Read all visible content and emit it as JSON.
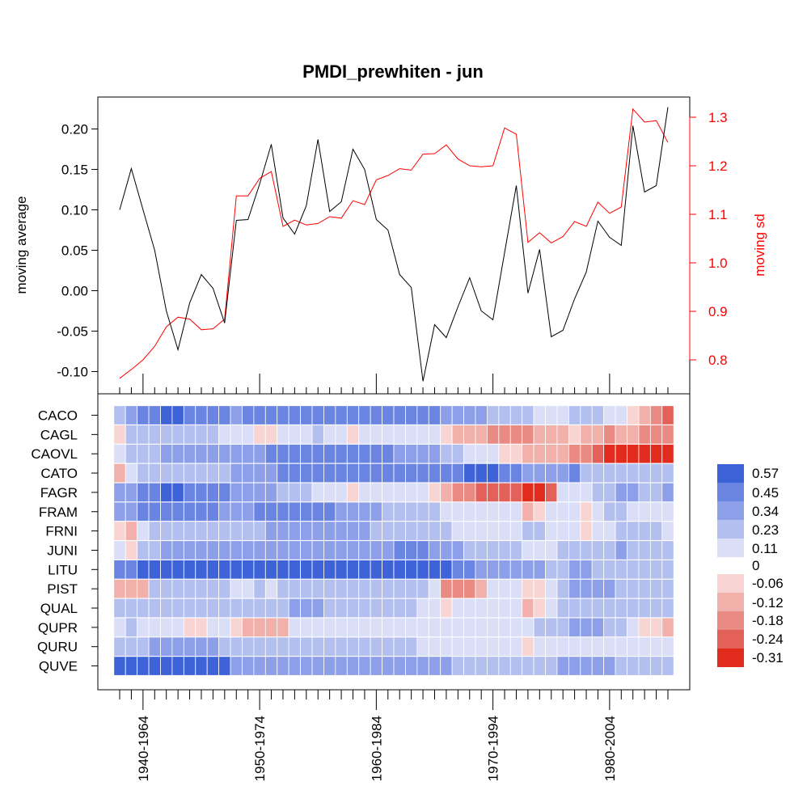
{
  "chart_data": {
    "type": "line+heatmap",
    "title": "PMDI_prewhiten - jun",
    "top_panel": {
      "ylabel_left": "moving average",
      "ylabel_right": "moving sd",
      "left_ticks": [
        "0.20",
        "0.15",
        "0.10",
        "0.05",
        "0.00",
        "-0.05",
        "-0.10"
      ],
      "left_tick_values": [
        0.2,
        0.15,
        0.1,
        0.05,
        0.0,
        -0.05,
        -0.1
      ],
      "ylim_left": [
        -0.1,
        0.2
      ],
      "right_ticks": [
        "1.3",
        "1.2",
        "1.1",
        "1.0",
        "0.9",
        "0.8"
      ],
      "right_tick_values": [
        1.3,
        1.2,
        1.1,
        1.0,
        0.9,
        0.8
      ],
      "ylim_right": [
        0.8,
        1.3
      ],
      "series": [
        {
          "name": "moving average",
          "color": "#000000",
          "values": [
            0.1,
            0.151,
            0.1,
            0.05,
            -0.025,
            -0.073,
            -0.015,
            0.02,
            0.003,
            -0.04,
            0.087,
            0.088,
            0.132,
            0.181,
            0.09,
            0.07,
            0.105,
            0.187,
            0.098,
            0.11,
            0.175,
            0.15,
            0.088,
            0.075,
            0.02,
            0.004,
            -0.112,
            -0.042,
            -0.058,
            -0.02,
            0.016,
            -0.025,
            -0.036,
            0.047,
            0.13,
            -0.003,
            0.051,
            -0.057,
            -0.049,
            -0.01,
            0.023,
            0.086,
            0.066,
            0.056,
            0.204,
            0.122,
            0.13,
            0.227
          ]
        },
        {
          "name": "moving sd",
          "color": "#ff0000",
          "values": [
            0.762,
            0.78,
            0.8,
            0.828,
            0.868,
            0.888,
            0.884,
            0.862,
            0.864,
            0.884,
            1.138,
            1.138,
            1.174,
            1.188,
            1.075,
            1.088,
            1.078,
            1.081,
            1.095,
            1.092,
            1.128,
            1.12,
            1.171,
            1.18,
            1.194,
            1.191,
            1.224,
            1.225,
            1.243,
            1.214,
            1.2,
            1.198,
            1.2,
            1.278,
            1.265,
            1.042,
            1.062,
            1.041,
            1.054,
            1.085,
            1.075,
            1.125,
            1.102,
            1.115,
            1.317,
            1.29,
            1.293,
            1.248
          ]
        }
      ]
    },
    "bottom_panel": {
      "rows": [
        "CACO",
        "CAGL",
        "CAOVL",
        "CATO",
        "FAGR",
        "FRAM",
        "FRNI",
        "JUNI",
        "LITU",
        "PIST",
        "QUAL",
        "QUPR",
        "QURU",
        "QUVE"
      ],
      "x_tick_labels": [
        "1940-1964",
        "1950-1974",
        "1960-1984",
        "1970-1994",
        "1980-2004"
      ],
      "n_windows": 48,
      "row_values": [
        [
          0.2,
          0.25,
          0.35,
          0.35,
          0.45,
          0.45,
          0.4,
          0.4,
          0.35,
          0.35,
          0.3,
          0.35,
          0.38,
          0.4,
          0.4,
          0.4,
          0.4,
          0.4,
          0.42,
          0.42,
          0.42,
          0.4,
          0.4,
          0.4,
          0.4,
          0.4,
          0.38,
          0.35,
          0.33,
          0.3,
          0.28,
          0.25,
          0.22,
          0.2,
          0.18,
          0.12,
          0.1,
          0.1,
          0.1,
          0.12,
          0.15,
          0.12,
          0.1,
          0.05,
          -0.05,
          -0.1,
          -0.12,
          -0.18
        ],
        [
          -0.05,
          0.15,
          0.12,
          0.14,
          0.2,
          0.16,
          0.14,
          0.12,
          0.12,
          0.1,
          0.05,
          0.05,
          -0.05,
          -0.05,
          0.1,
          0.05,
          0.1,
          0.12,
          0.08,
          0.05,
          -0.02,
          0.04,
          0.05,
          0.08,
          0.1,
          0.08,
          0.05,
          0.05,
          -0.05,
          -0.08,
          -0.1,
          -0.1,
          -0.12,
          -0.12,
          -0.14,
          -0.12,
          -0.1,
          -0.08,
          -0.06,
          -0.05,
          -0.08,
          -0.1,
          -0.12,
          -0.1,
          -0.1,
          -0.12,
          -0.12,
          -0.12
        ],
        [
          0.05,
          0.15,
          0.2,
          0.2,
          0.25,
          0.25,
          0.25,
          0.25,
          0.28,
          0.3,
          0.3,
          0.3,
          0.32,
          0.34,
          0.35,
          0.35,
          0.38,
          0.38,
          0.4,
          0.4,
          0.4,
          0.4,
          0.38,
          0.35,
          0.33,
          0.3,
          0.28,
          0.25,
          0.2,
          0.15,
          0.1,
          0.08,
          0.02,
          -0.02,
          -0.05,
          -0.06,
          -0.08,
          -0.1,
          -0.1,
          -0.12,
          -0.14,
          -0.18,
          -0.24,
          -0.25,
          -0.26,
          -0.24,
          -0.24,
          -0.31
        ],
        [
          -0.08,
          0.05,
          0.12,
          0.15,
          0.18,
          0.18,
          0.2,
          0.2,
          0.22,
          0.22,
          0.28,
          0.28,
          0.3,
          0.32,
          0.35,
          0.38,
          0.38,
          0.4,
          0.4,
          0.42,
          0.42,
          0.42,
          0.42,
          0.42,
          0.42,
          0.42,
          0.4,
          0.4,
          0.42,
          0.44,
          0.45,
          0.45,
          0.45,
          0.44,
          0.38,
          0.3,
          0.28,
          0.28,
          0.3,
          0.34,
          0.2,
          0.18,
          0.18,
          0.18,
          0.17,
          0.16,
          0.16,
          0.2
        ],
        [
          0.25,
          0.3,
          0.38,
          0.42,
          0.48,
          0.48,
          0.4,
          0.38,
          0.35,
          0.35,
          0.28,
          0.26,
          0.25,
          0.24,
          0.22,
          0.18,
          0.12,
          0.1,
          0.08,
          0.05,
          -0.02,
          0.03,
          0.05,
          0.05,
          0.05,
          0.05,
          0.03,
          -0.05,
          -0.1,
          -0.16,
          -0.17,
          -0.18,
          -0.18,
          -0.2,
          -0.22,
          -0.3,
          -0.31,
          -0.18,
          0.05,
          0.08,
          0.1,
          0.15,
          0.18,
          0.3,
          0.25,
          0.22,
          0.2,
          0.24
        ],
        [
          0.25,
          0.32,
          0.38,
          0.38,
          0.4,
          0.4,
          0.36,
          0.36,
          0.34,
          0.33,
          0.32,
          0.33,
          0.34,
          0.35,
          0.35,
          0.36,
          0.38,
          0.38,
          0.36,
          0.33,
          0.32,
          0.3,
          0.24,
          0.2,
          0.2,
          0.18,
          0.16,
          0.12,
          0.1,
          0.1,
          0.08,
          0.08,
          0.1,
          0.1,
          0.1,
          -0.08,
          -0.05,
          0.05,
          0.05,
          0.05,
          -0.03,
          0.1,
          0.12,
          0.15,
          0.05,
          0.03,
          0.02,
          0.06
        ],
        [
          -0.05,
          -0.07,
          0.01,
          0.12,
          0.14,
          0.14,
          0.15,
          0.15,
          0.18,
          0.18,
          0.2,
          0.2,
          0.22,
          0.28,
          0.28,
          0.3,
          0.3,
          0.32,
          0.32,
          0.3,
          0.28,
          0.26,
          0.22,
          0.2,
          0.18,
          0.15,
          0.12,
          0.12,
          0.12,
          0.1,
          0.1,
          0.1,
          0.08,
          0.08,
          0.05,
          0.15,
          0.12,
          0.1,
          0.1,
          0.05,
          -0.03,
          0.05,
          0.1,
          0.12,
          0.15,
          0.15,
          0.15,
          0.1
        ],
        [
          0.1,
          -0.05,
          0.15,
          0.15,
          0.28,
          0.28,
          0.28,
          0.26,
          0.26,
          0.26,
          0.3,
          0.32,
          0.33,
          0.33,
          0.33,
          0.32,
          0.32,
          0.3,
          0.3,
          0.3,
          0.3,
          0.3,
          0.3,
          0.32,
          0.34,
          0.36,
          0.36,
          0.3,
          0.28,
          0.25,
          0.22,
          0.2,
          0.2,
          0.18,
          0.15,
          0.08,
          0.02,
          0.02,
          0.15,
          0.18,
          0.18,
          0.22,
          0.22,
          0.25,
          0.22,
          0.2,
          0.18,
          0.22
        ],
        [
          0.35,
          0.42,
          0.45,
          0.48,
          0.5,
          0.5,
          0.5,
          0.5,
          0.52,
          0.52,
          0.52,
          0.54,
          0.55,
          0.56,
          0.56,
          0.57,
          0.57,
          0.57,
          0.55,
          0.55,
          0.54,
          0.52,
          0.52,
          0.52,
          0.52,
          0.5,
          0.5,
          0.52,
          0.45,
          0.4,
          0.35,
          0.33,
          0.32,
          0.3,
          0.28,
          0.25,
          0.24,
          0.22,
          0.22,
          0.25,
          0.25,
          0.22,
          0.2,
          0.2,
          0.18,
          0.18,
          0.18,
          0.2
        ],
        [
          -0.1,
          -0.1,
          -0.1,
          0.12,
          0.14,
          0.15,
          0.15,
          0.15,
          0.12,
          0.12,
          0.1,
          0.1,
          0.12,
          0.02,
          0.18,
          0.2,
          0.22,
          0.22,
          0.2,
          0.2,
          0.18,
          0.16,
          0.16,
          0.15,
          0.15,
          0.12,
          0.12,
          0.1,
          -0.12,
          -0.12,
          -0.12,
          -0.1,
          0.02,
          0.02,
          0.1,
          -0.05,
          -0.05,
          0.1,
          0.22,
          0.24,
          0.26,
          0.26,
          0.28,
          0.22,
          0.2,
          0.18,
          0.15,
          0.15
        ],
        [
          0.2,
          0.22,
          0.18,
          0.15,
          0.15,
          0.15,
          0.14,
          0.12,
          0.12,
          0.12,
          0.14,
          0.16,
          0.18,
          0.2,
          0.22,
          0.24,
          0.25,
          0.25,
          0.22,
          0.2,
          0.2,
          0.2,
          0.2,
          0.2,
          0.18,
          0.16,
          0.1,
          0.05,
          -0.04,
          0.05,
          0.05,
          0.08,
          0.1,
          0.1,
          0.1,
          -0.06,
          -0.05,
          0.1,
          0.15,
          0.15,
          0.18,
          0.2,
          0.18,
          0.12,
          0.15,
          0.15,
          0.12,
          0.15
        ],
        [
          0.1,
          0.11,
          0.1,
          0.08,
          0.05,
          0.03,
          -0.03,
          -0.04,
          0.02,
          0.05,
          -0.05,
          -0.06,
          -0.08,
          -0.09,
          -0.06,
          0.08,
          0.1,
          0.05,
          0.04,
          0.03,
          0.05,
          0.06,
          0.05,
          0.05,
          0.05,
          0.03,
          0.02,
          0.02,
          0.04,
          0.05,
          0.03,
          0.03,
          0.05,
          0.05,
          0.08,
          0.1,
          0.15,
          0.18,
          0.22,
          0.25,
          0.28,
          0.25,
          0.22,
          0.15,
          0.05,
          -0.04,
          -0.03,
          -0.08
        ],
        [
          0.22,
          0.22,
          0.22,
          0.25,
          0.25,
          0.25,
          0.25,
          0.25,
          0.25,
          0.22,
          0.18,
          0.18,
          0.16,
          0.15,
          0.14,
          0.14,
          0.13,
          0.13,
          0.12,
          0.12,
          0.12,
          0.12,
          0.14,
          0.14,
          0.14,
          0.12,
          0.1,
          0.1,
          0.08,
          0.07,
          0.06,
          0.05,
          0.05,
          0.05,
          0.05,
          -0.05,
          0.04,
          0.03,
          0.02,
          0.03,
          0.03,
          0.02,
          0.02,
          0.02,
          0.02,
          0.02,
          0.02,
          0.05
        ],
        [
          0.45,
          0.48,
          0.48,
          0.5,
          0.5,
          0.52,
          0.52,
          0.5,
          0.5,
          0.48,
          0.3,
          0.3,
          0.3,
          0.28,
          0.26,
          0.25,
          0.25,
          0.25,
          0.25,
          0.25,
          0.25,
          0.25,
          0.25,
          0.25,
          0.25,
          0.25,
          0.25,
          0.25,
          0.25,
          0.2,
          0.18,
          0.18,
          0.16,
          0.15,
          0.14,
          0.12,
          0.2,
          0.22,
          0.25,
          0.28,
          0.3,
          0.32,
          0.3,
          0.22,
          0.18,
          0.15,
          0.12,
          0.12
        ]
      ]
    },
    "legend": {
      "labels": [
        "0.57",
        "0.45",
        "0.34",
        "0.23",
        "0.11",
        "0",
        "-0.06",
        "-0.12",
        "-0.18",
        "-0.24",
        "-0.31"
      ],
      "colors": [
        "#3e63d8",
        "#6a84e2",
        "#8d9fe9",
        "#b3bfef",
        "#dadff7",
        "#f8d5d2",
        "#f2b0aa",
        "#ea8b83",
        "#e4615a",
        "#e12b1d"
      ],
      "neg_breaks": [
        0,
        -0.06,
        -0.12,
        -0.18,
        -0.24,
        -0.31
      ],
      "pos_breaks": [
        0,
        0.11,
        0.23,
        0.34,
        0.45,
        0.57
      ]
    }
  }
}
